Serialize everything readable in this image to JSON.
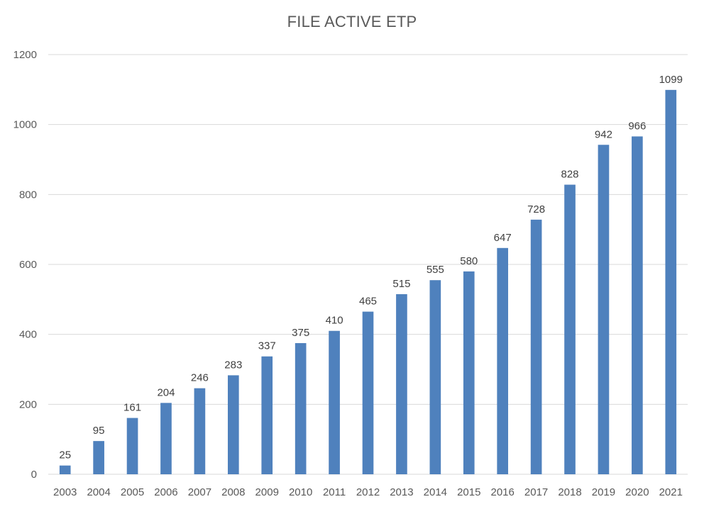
{
  "chart_data": {
    "type": "bar",
    "title": "FILE ACTIVE ETP",
    "xlabel": "",
    "ylabel": "",
    "categories": [
      "2003",
      "2004",
      "2005",
      "2006",
      "2007",
      "2008",
      "2009",
      "2010",
      "2011",
      "2012",
      "2013",
      "2014",
      "2015",
      "2016",
      "2017",
      "2018",
      "2019",
      "2020",
      "2021"
    ],
    "values": [
      25,
      95,
      161,
      204,
      246,
      283,
      337,
      375,
      410,
      465,
      515,
      555,
      580,
      647,
      728,
      828,
      942,
      966,
      1099
    ],
    "ylim": [
      0,
      1200
    ],
    "yticks": [
      0,
      200,
      400,
      600,
      800,
      1000,
      1200
    ],
    "grid": true,
    "legend": "none",
    "data_labels": true,
    "colors": {
      "bar": "#4f81bd",
      "grid": "#d9d9d9",
      "text": "#595959"
    }
  }
}
